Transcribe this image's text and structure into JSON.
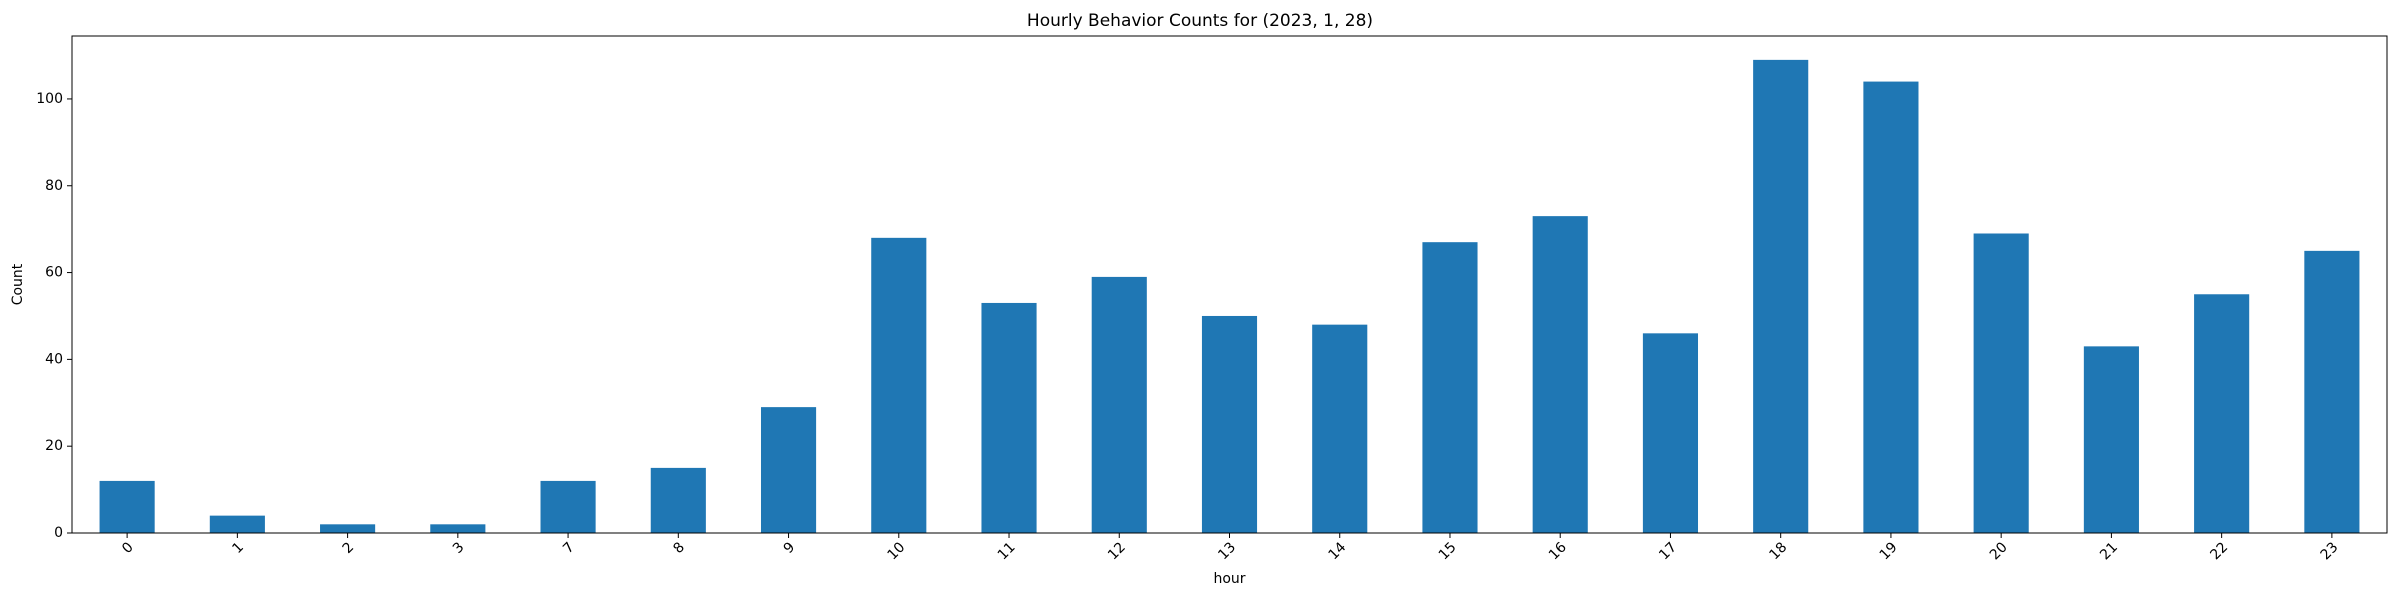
{
  "chart_data": {
    "type": "bar",
    "title": "Hourly Behavior Counts for (2023, 1, 28)",
    "xlabel": "hour",
    "ylabel": "Count",
    "categories": [
      "0",
      "1",
      "2",
      "3",
      "7",
      "8",
      "9",
      "10",
      "11",
      "12",
      "13",
      "14",
      "15",
      "16",
      "17",
      "18",
      "19",
      "20",
      "21",
      "22",
      "23"
    ],
    "values": [
      12,
      4,
      2,
      2,
      12,
      15,
      29,
      68,
      53,
      59,
      50,
      48,
      67,
      73,
      46,
      109,
      104,
      69,
      43,
      55,
      65
    ],
    "ylim": [
      0,
      114.5
    ],
    "yticks": [
      0,
      20,
      40,
      60,
      80,
      100
    ],
    "bar_color": "#1f77b4",
    "grid": false,
    "xtick_rotation": 45
  }
}
